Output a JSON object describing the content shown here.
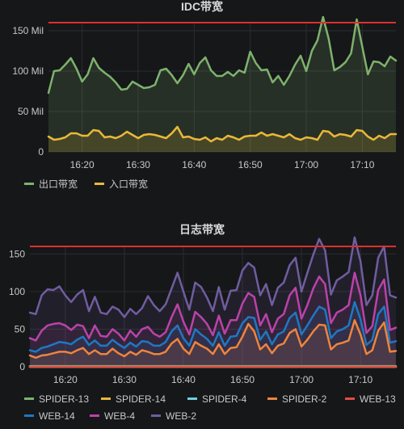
{
  "chart_data": [
    {
      "type": "area",
      "title": "IDC带宽",
      "x": [
        "16:14",
        "16:15",
        "16:16",
        "16:17",
        "16:18",
        "16:19",
        "16:20",
        "16:21",
        "16:22",
        "16:23",
        "16:24",
        "16:25",
        "16:26",
        "16:27",
        "16:28",
        "16:29",
        "16:30",
        "16:31",
        "16:32",
        "16:33",
        "16:34",
        "16:35",
        "16:36",
        "16:37",
        "16:38",
        "16:39",
        "16:40",
        "16:41",
        "16:42",
        "16:43",
        "16:44",
        "16:45",
        "16:46",
        "16:47",
        "16:48",
        "16:49",
        "16:50",
        "16:51",
        "16:52",
        "16:53",
        "16:54",
        "16:55",
        "16:56",
        "16:57",
        "16:58",
        "16:59",
        "17:00",
        "17:01",
        "17:02",
        "17:03",
        "17:04",
        "17:05",
        "17:06",
        "17:07",
        "17:08",
        "17:09",
        "17:10",
        "17:11",
        "17:12",
        "17:13",
        "17:14",
        "17:15",
        "17:16"
      ],
      "xticks": [
        "16:20",
        "16:30",
        "16:40",
        "16:50",
        "17:00",
        "17:10"
      ],
      "yticks": [
        0,
        50,
        100,
        150
      ],
      "ytick_labels": [
        "0",
        "50 Mil",
        "100 Mil",
        "150 Mil"
      ],
      "ylim": [
        0,
        160
      ],
      "threshold": 160,
      "threshold_color": "#e02f2f",
      "grid": true,
      "legend": "bottom-left",
      "series": [
        {
          "name": "出口带宽",
          "color": "#7eb26d",
          "values": [
            73,
            100,
            101,
            108,
            116,
            103,
            87,
            96,
            116,
            104,
            98,
            93,
            86,
            77,
            78,
            87,
            83,
            79,
            80,
            83,
            101,
            103,
            95,
            85,
            95,
            109,
            96,
            110,
            117,
            101,
            94,
            94,
            99,
            94,
            101,
            98,
            124,
            110,
            101,
            102,
            86,
            94,
            83,
            94,
            108,
            119,
            100,
            125,
            138,
            167,
            140,
            101,
            105,
            111,
            122,
            164,
            130,
            96,
            112,
            111,
            106,
            118,
            113
          ]
        },
        {
          "name": "入口带宽",
          "color": "#eab839",
          "values": [
            19,
            15,
            16,
            18,
            23,
            23,
            20,
            20,
            27,
            26,
            18,
            19,
            17,
            20,
            25,
            21,
            17,
            21,
            22,
            21,
            19,
            17,
            23,
            31,
            18,
            19,
            16,
            15,
            18,
            13,
            17,
            15,
            20,
            18,
            15,
            19,
            20,
            20,
            24,
            20,
            22,
            20,
            18,
            22,
            17,
            15,
            18,
            17,
            15,
            26,
            25,
            19,
            22,
            21,
            19,
            27,
            26,
            19,
            15,
            20,
            17,
            22,
            22
          ]
        }
      ]
    },
    {
      "type": "area",
      "title": "日志带宽",
      "x": [
        "16:14",
        "16:15",
        "16:16",
        "16:17",
        "16:18",
        "16:19",
        "16:20",
        "16:21",
        "16:22",
        "16:23",
        "16:24",
        "16:25",
        "16:26",
        "16:27",
        "16:28",
        "16:29",
        "16:30",
        "16:31",
        "16:32",
        "16:33",
        "16:34",
        "16:35",
        "16:36",
        "16:37",
        "16:38",
        "16:39",
        "16:40",
        "16:41",
        "16:42",
        "16:43",
        "16:44",
        "16:45",
        "16:46",
        "16:47",
        "16:48",
        "16:49",
        "16:50",
        "16:51",
        "16:52",
        "16:53",
        "16:54",
        "16:55",
        "16:56",
        "16:57",
        "16:58",
        "16:59",
        "17:00",
        "17:01",
        "17:02",
        "17:03",
        "17:04",
        "17:05",
        "17:06",
        "17:07",
        "17:08",
        "17:09",
        "17:10",
        "17:11",
        "17:12",
        "17:13",
        "17:14",
        "17:15",
        "17:16"
      ],
      "xticks": [
        "16:20",
        "16:30",
        "16:40",
        "16:50",
        "17:00",
        "17:10"
      ],
      "yticks": [
        0,
        50,
        100,
        150
      ],
      "ytick_labels": [
        "0",
        "50",
        "100",
        "150"
      ],
      "ylim": [
        0,
        160
      ],
      "threshold": 160,
      "threshold_color": "#e02f2f",
      "grid": true,
      "legend": "bottom-left",
      "series": [
        {
          "name": "SPIDER-13",
          "color": "#7eb26d",
          "values": [
            1,
            1,
            1,
            1,
            1,
            1,
            1,
            1,
            1,
            1,
            1,
            1,
            1,
            1,
            1,
            1,
            1,
            1,
            1,
            1,
            1,
            1,
            1,
            1,
            1,
            1,
            1,
            1,
            1,
            1,
            1,
            1,
            1,
            1,
            1,
            1,
            1,
            1,
            1,
            1,
            1,
            1,
            1,
            1,
            1,
            1,
            1,
            1,
            1,
            1,
            1,
            1,
            1,
            1,
            1,
            1,
            1,
            1,
            1,
            1,
            1,
            1,
            1
          ]
        },
        {
          "name": "SPIDER-14",
          "color": "#eab839",
          "values": [
            0,
            0,
            0,
            0,
            0,
            0,
            0,
            0,
            0,
            0,
            0,
            0,
            0,
            0,
            0,
            0,
            0,
            0,
            0,
            0,
            0,
            0,
            0,
            0,
            0,
            0,
            0,
            0,
            0,
            0,
            0,
            0,
            0,
            0,
            0,
            0,
            0,
            0,
            0,
            0,
            0,
            0,
            0,
            0,
            0,
            0,
            0,
            0,
            0,
            0,
            0,
            0,
            0,
            0,
            0,
            0,
            0,
            0,
            0,
            0,
            0,
            0,
            0
          ]
        },
        {
          "name": "SPIDER-4",
          "color": "#6ed0e0",
          "values": [
            0,
            0,
            0,
            0,
            0,
            0,
            0,
            0,
            0,
            0,
            0,
            0,
            0,
            0,
            0,
            0,
            0,
            0,
            0,
            0,
            0,
            0,
            0,
            0,
            0,
            0,
            0,
            0,
            0,
            0,
            0,
            0,
            0,
            0,
            0,
            0,
            0,
            0,
            0,
            0,
            0,
            0,
            0,
            0,
            0,
            0,
            0,
            0,
            0,
            0,
            0,
            0,
            0,
            0,
            0,
            0,
            0,
            0,
            0,
            0,
            0,
            0,
            0
          ]
        },
        {
          "name": "SPIDER-2",
          "color": "#ef843c",
          "values": [
            15,
            12,
            15,
            16,
            18,
            20,
            20,
            18,
            22,
            25,
            17,
            22,
            17,
            17,
            24,
            18,
            14,
            20,
            16,
            22,
            20,
            17,
            17,
            20,
            31,
            37,
            24,
            17,
            33,
            28,
            24,
            17,
            30,
            17,
            25,
            26,
            40,
            57,
            47,
            23,
            30,
            18,
            28,
            31,
            45,
            50,
            27,
            36,
            47,
            56,
            55,
            23,
            30,
            32,
            35,
            62,
            43,
            17,
            22,
            48,
            59,
            20,
            21
          ]
        },
        {
          "name": "WEB-13",
          "color": "#e24d42",
          "values": [
            0,
            0,
            0,
            0,
            0,
            0,
            0,
            0,
            0,
            0,
            0,
            0,
            0,
            0,
            0,
            0,
            0,
            0,
            0,
            0,
            0,
            0,
            0,
            0,
            0,
            0,
            0,
            0,
            0,
            0,
            0,
            0,
            0,
            0,
            0,
            0,
            0,
            0,
            0,
            0,
            0,
            0,
            0,
            0,
            0,
            0,
            0,
            0,
            0,
            0,
            0,
            0,
            0,
            0,
            0,
            0,
            0,
            0,
            0,
            0,
            0,
            0,
            0
          ]
        },
        {
          "name": "WEB-14",
          "color": "#1f78c1",
          "values": [
            22,
            20,
            25,
            27,
            30,
            33,
            32,
            30,
            36,
            40,
            29,
            35,
            28,
            28,
            36,
            30,
            25,
            32,
            27,
            34,
            33,
            28,
            28,
            33,
            47,
            55,
            38,
            28,
            50,
            43,
            37,
            28,
            46,
            28,
            40,
            41,
            58,
            66,
            65,
            36,
            47,
            30,
            43,
            47,
            65,
            72,
            43,
            55,
            68,
            80,
            76,
            38,
            47,
            50,
            55,
            86,
            63,
            29,
            36,
            70,
            80,
            32,
            34
          ]
        },
        {
          "name": "WEB-4",
          "color": "#ba43a9",
          "values": [
            38,
            35,
            48,
            55,
            57,
            58,
            55,
            49,
            56,
            54,
            38,
            55,
            41,
            40,
            50,
            44,
            35,
            48,
            40,
            50,
            53,
            44,
            40,
            46,
            66,
            83,
            60,
            43,
            73,
            66,
            57,
            42,
            68,
            44,
            62,
            62,
            84,
            98,
            93,
            55,
            70,
            46,
            64,
            70,
            95,
            105,
            64,
            82,
            104,
            120,
            110,
            58,
            72,
            76,
            82,
            125,
            95,
            45,
            54,
            102,
            116,
            49,
            52
          ]
        },
        {
          "name": "WEB-2",
          "color": "#705da0",
          "values": [
            72,
            70,
            95,
            103,
            102,
            107,
            95,
            86,
            96,
            102,
            74,
            93,
            72,
            70,
            80,
            76,
            66,
            77,
            70,
            78,
            94,
            82,
            74,
            83,
            104,
            125,
            100,
            76,
            112,
            106,
            92,
            74,
            106,
            76,
            101,
            102,
            128,
            138,
            132,
            95,
            110,
            82,
            105,
            112,
            135,
            145,
            100,
            125,
            149,
            170,
            155,
            96,
            115,
            120,
            126,
            175,
            140,
            82,
            95,
            145,
            160,
            95,
            92
          ]
        }
      ]
    }
  ]
}
